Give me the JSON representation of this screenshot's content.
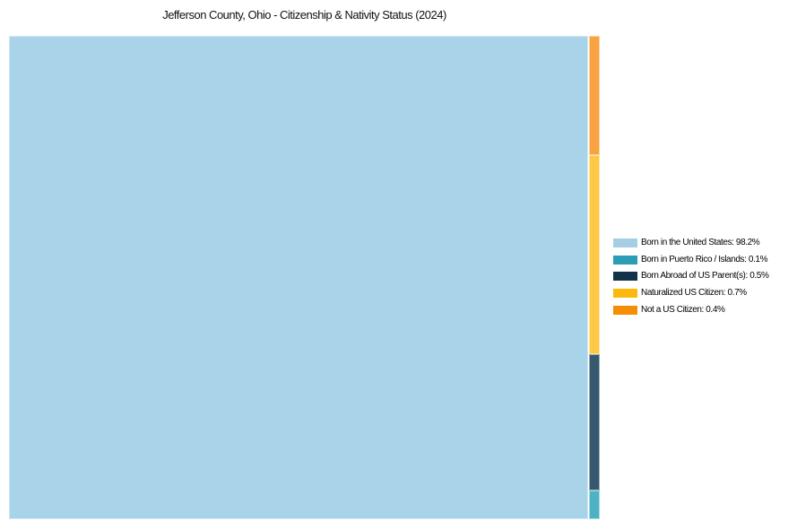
{
  "page": {
    "title": "Jefferson County, Ohio - Citizenship & Nativity Status (2024)"
  },
  "chart_data": {
    "type": "treemap",
    "title": "Jefferson County, Ohio - Citizenship & Nativity Status (2024)",
    "unit": "%",
    "legend_position": "right",
    "categories": [
      "Born in the United States",
      "Born in Puerto Rico / Islands",
      "Born Abroad of US Parent(s)",
      "Naturalized US Citizen",
      "Not a US Citizen"
    ],
    "values": [
      98.2,
      0.1,
      0.5,
      0.7,
      0.4
    ],
    "tiles": [
      {
        "label": "Born in the United States",
        "value": 98.2,
        "fill": "#a9d3e8"
      },
      {
        "label": "Not a US Citizen",
        "value": 0.4,
        "fill": "#f9a241"
      },
      {
        "label": "Naturalized US Citizen",
        "value": 0.7,
        "fill": "#fdc843"
      },
      {
        "label": "Born Abroad of US Parent(s)",
        "value": 0.5,
        "fill": "#37596f"
      },
      {
        "label": "Born in Puerto Rico / Islands",
        "value": 0.1,
        "fill": "#4db3c4"
      }
    ]
  },
  "legend": {
    "items": [
      {
        "text": "Born in the United States: 98.2%",
        "color": "#a6cee3"
      },
      {
        "text": "Born in Puerto Rico / Islands: 0.1%",
        "color": "#2b9db5"
      },
      {
        "text": "Born Abroad of US Parent(s): 0.5%",
        "color": "#123349"
      },
      {
        "text": "Naturalized US Citizen: 0.7%",
        "color": "#fdb80d"
      },
      {
        "text": "Not a US Citizen: 0.4%",
        "color": "#f68d06"
      }
    ]
  }
}
